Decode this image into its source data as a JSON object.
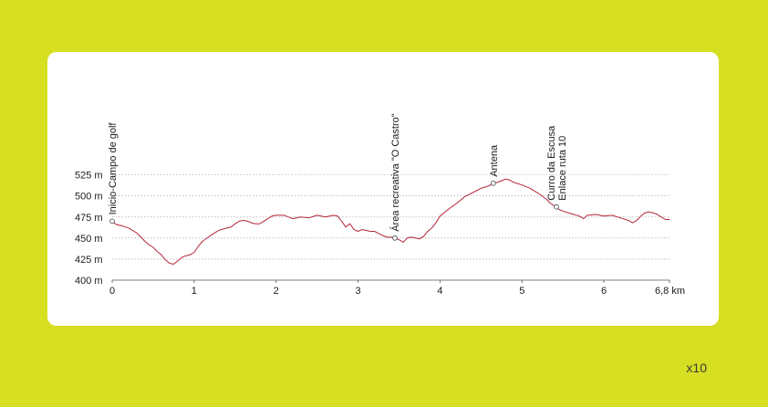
{
  "scale_note": "x10",
  "chart_data": {
    "type": "line",
    "y_tick_labels": [
      "400 m",
      "425 m",
      "450 m",
      "475 m",
      "500 m",
      "525 m"
    ],
    "y_ticks": [
      400,
      425,
      450,
      475,
      500,
      525
    ],
    "x_tick_labels": [
      "0",
      "1",
      "2",
      "3",
      "4",
      "5",
      "6",
      "6,8 km"
    ],
    "x_ticks": [
      0,
      1,
      2,
      3,
      4,
      5,
      6,
      6.8
    ],
    "xlim": [
      0,
      6.8
    ],
    "ylim": [
      400,
      530
    ],
    "grid": true,
    "line_color": "#b5263a",
    "series": [
      {
        "x": [
          0,
          0.05,
          0.1,
          0.2,
          0.3,
          0.35,
          0.4,
          0.45,
          0.5,
          0.55,
          0.6,
          0.65,
          0.7,
          0.75,
          0.8,
          0.85,
          0.9,
          0.95,
          1.0,
          1.05,
          1.1,
          1.2,
          1.3,
          1.4,
          1.45,
          1.5,
          1.55,
          1.6,
          1.65,
          1.7,
          1.75,
          1.8,
          1.85,
          1.9,
          1.95,
          2.0,
          2.1,
          2.2,
          2.3,
          2.4,
          2.5,
          2.55,
          2.6,
          2.7,
          2.75,
          2.8,
          2.85,
          2.9,
          2.95,
          3.0,
          3.05,
          3.1,
          3.15,
          3.2,
          3.3,
          3.35,
          3.4,
          3.45,
          3.5,
          3.55,
          3.6,
          3.65,
          3.7,
          3.75,
          3.8,
          3.85,
          3.9,
          3.95,
          4.0,
          4.1,
          4.2,
          4.3,
          4.4,
          4.5,
          4.6,
          4.65,
          4.7,
          4.75,
          4.8,
          4.85,
          4.9,
          5.0,
          5.1,
          5.2,
          5.3,
          5.35,
          5.4,
          5.45,
          5.5,
          5.6,
          5.7,
          5.75,
          5.8,
          5.9,
          6.0,
          6.1,
          6.2,
          6.3,
          6.35,
          6.4,
          6.45,
          6.5,
          6.55,
          6.6,
          6.65,
          6.7,
          6.75,
          6.8
        ],
        "y": [
          470,
          466,
          465,
          462,
          456,
          451,
          446,
          442,
          439,
          434,
          430,
          424,
          420,
          419,
          423,
          427,
          429,
          430,
          433,
          440,
          446,
          453,
          459,
          462,
          463,
          467,
          470,
          471,
          470,
          468,
          467,
          467,
          470,
          473,
          476,
          477,
          477,
          473,
          475,
          474,
          477,
          476,
          475,
          477,
          476,
          470,
          463,
          467,
          460,
          458,
          460,
          459,
          458,
          458,
          453,
          451,
          451,
          450,
          448,
          445,
          450,
          451,
          450,
          449,
          452,
          458,
          462,
          468,
          476,
          484,
          491,
          499,
          504,
          509,
          512,
          515,
          516,
          518,
          520,
          519,
          516,
          513,
          509,
          503,
          496,
          491,
          488,
          484,
          482,
          479,
          476,
          473,
          477,
          478,
          476,
          477,
          474,
          471,
          468,
          471,
          476,
          480,
          481,
          480,
          478,
          475,
          472,
          472
        ]
      }
    ],
    "waypoints": [
      {
        "x": 0,
        "y": 470,
        "lines": [
          "Inicio-Campo de  golf"
        ]
      },
      {
        "x": 3.45,
        "y": 450,
        "lines": [
          "Área recreativa \"O Castro\""
        ]
      },
      {
        "x": 4.65,
        "y": 515,
        "lines": [
          "Antena"
        ]
      },
      {
        "x": 5.42,
        "y": 487,
        "lines": [
          "Curro da Escusa",
          "Enlace ruta 10"
        ]
      }
    ]
  }
}
